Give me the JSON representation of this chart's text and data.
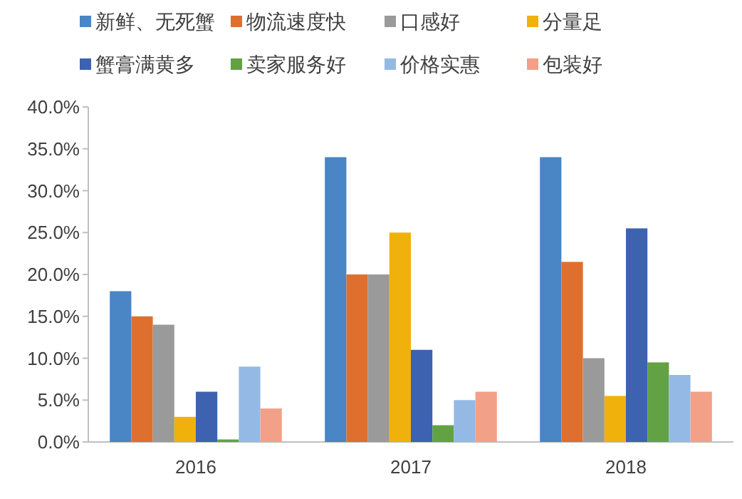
{
  "chart_data": {
    "type": "bar",
    "categories": [
      "2016",
      "2017",
      "2018"
    ],
    "ylim": [
      0,
      40
    ],
    "yticks": [
      {
        "value": 0,
        "label": "0.0%"
      },
      {
        "value": 5,
        "label": "5.0%"
      },
      {
        "value": 10,
        "label": "10.0%"
      },
      {
        "value": 15,
        "label": "15.0%"
      },
      {
        "value": 20,
        "label": "20.0%"
      },
      {
        "value": 25,
        "label": "25.0%"
      },
      {
        "value": 30,
        "label": "30.0%"
      },
      {
        "value": 35,
        "label": "35.0%"
      },
      {
        "value": 40,
        "label": "40.0%"
      }
    ],
    "grid": false,
    "legend": "top",
    "series": [
      {
        "name": "新鲜、无死蟹",
        "color": "#4a85c5",
        "values": [
          18,
          34,
          34
        ]
      },
      {
        "name": "物流速度快",
        "color": "#df6f2e",
        "values": [
          15,
          20,
          21.5
        ]
      },
      {
        "name": "口感好",
        "color": "#9a9a9a",
        "values": [
          14,
          20,
          10
        ]
      },
      {
        "name": "分量足",
        "color": "#f1b10c",
        "values": [
          3,
          25,
          5.5
        ]
      },
      {
        "name": "蟹膏满黄多",
        "color": "#3d62b0",
        "values": [
          6,
          11,
          25.5
        ]
      },
      {
        "name": "卖家服务好",
        "color": "#62a144",
        "values": [
          0.3,
          2,
          9.5
        ]
      },
      {
        "name": "价格实惠",
        "color": "#94b9e4",
        "values": [
          9,
          5,
          8
        ]
      },
      {
        "name": "包装好",
        "color": "#f3a088",
        "values": [
          4,
          6,
          6
        ]
      }
    ]
  }
}
